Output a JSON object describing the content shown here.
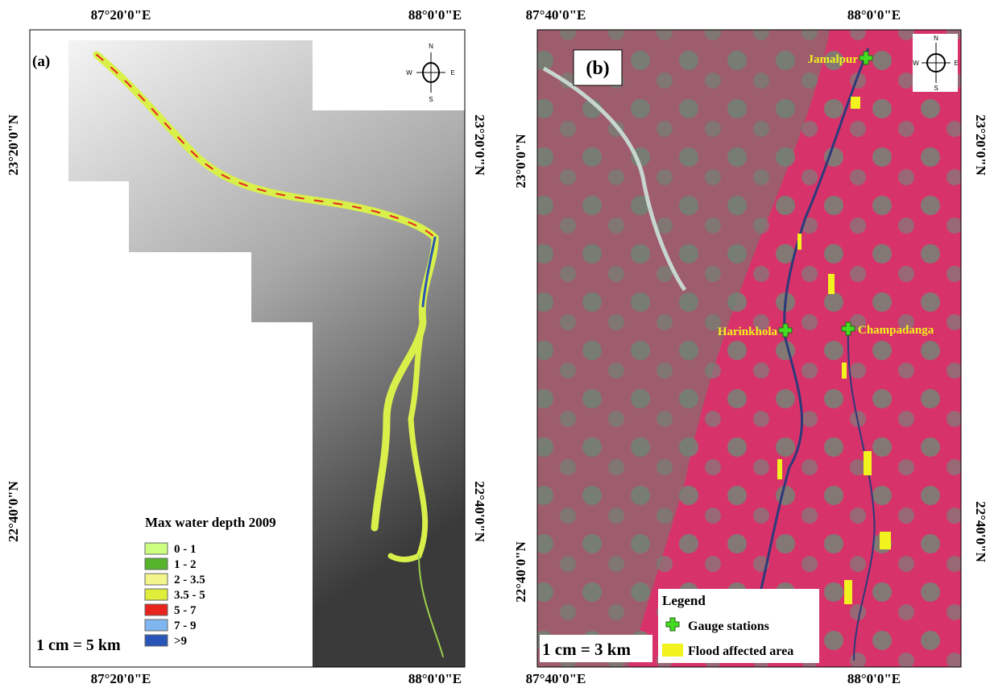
{
  "panels": [
    {
      "label": "(a)",
      "top_ticks": [
        "87°20'0\"E",
        "88°0'0\"E"
      ],
      "bottom_ticks": [
        "87°20'0\"E",
        "88°0'0\"E"
      ],
      "left_ticks": [
        "23°20'0\"N",
        "22°40'0\"N"
      ],
      "right_ticks": [
        "23°20'0\"N",
        "22°40'0\"N"
      ],
      "compass": {
        "n": "N",
        "e": "E",
        "s": "S",
        "w": "W"
      },
      "legend": {
        "title": "Max water depth 2009",
        "items": [
          {
            "label": "0 - 1",
            "color": "#ccff80"
          },
          {
            "label": "1 - 2",
            "color": "#55b42a"
          },
          {
            "label": "2 - 3.5",
            "color": "#f2f58a"
          },
          {
            "label": "3.5 - 5",
            "color": "#dfee3a"
          },
          {
            "label": "5 - 7",
            "color": "#e8231c"
          },
          {
            "label": "7 - 9",
            "color": "#7fb6f0"
          },
          {
            "label": ">9",
            "color": "#2a55b8"
          }
        ]
      },
      "scale": "1 cm = 5 km"
    },
    {
      "label": "(b)",
      "top_ticks": [
        "87°40'0\"E",
        "88°0'0\"E"
      ],
      "bottom_ticks": [
        "87°40'0\"E",
        "88°0'0\"E"
      ],
      "left_ticks": [
        "23°0'0\"N",
        "22°40'0\"N"
      ],
      "right_ticks": [
        "23°20'0\"N",
        "22°40'0\"N"
      ],
      "compass": {
        "n": "N",
        "e": "E",
        "s": "S",
        "w": "W"
      },
      "stations": [
        "Jamalpur",
        "Harinkhola",
        "Champadanga"
      ],
      "legend": {
        "title": "Legend",
        "items": [
          {
            "label": "Gauge stations",
            "color": "#44dd22"
          },
          {
            "label": "Flood affected area",
            "color": "#f2f21e"
          }
        ]
      },
      "scale": "1 cm = 3 km"
    }
  ]
}
